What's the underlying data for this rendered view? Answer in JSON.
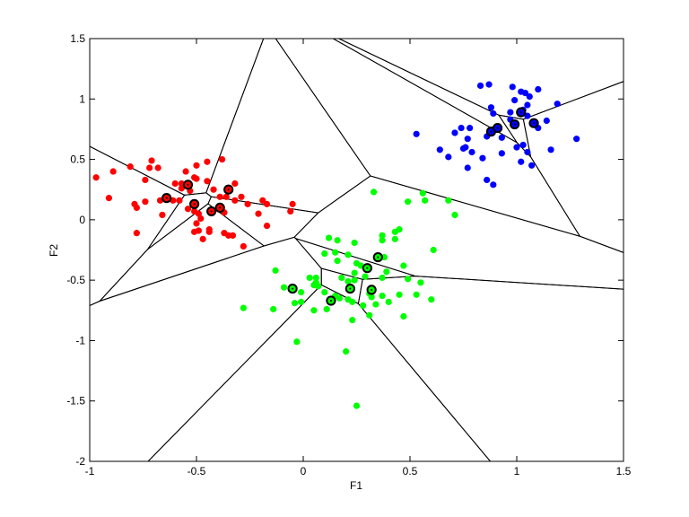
{
  "chart_data": {
    "type": "scatter",
    "title": "",
    "xlabel": "F1",
    "ylabel": "F2",
    "xlim": [
      -1,
      1.5
    ],
    "ylim": [
      -2,
      1.5
    ],
    "xticks": [
      -1,
      -0.5,
      0,
      0.5,
      1,
      1.5
    ],
    "yticks": [
      -2,
      -1.5,
      -1,
      -0.5,
      0,
      0.5,
      1,
      1.5
    ],
    "xtick_labels": [
      "-1",
      "-0.5",
      "0",
      "0.5",
      "1",
      "1.5"
    ],
    "ytick_labels": [
      "-2",
      "-1.5",
      "-1",
      "-0.5",
      "0",
      "0.5",
      "1",
      "1.5"
    ],
    "grid": false,
    "overlay": "voronoi diagram of circled centroid points",
    "series": [
      {
        "color": "#ff0000",
        "points": [
          [
            -0.97,
            0.35
          ],
          [
            -0.89,
            0.4
          ],
          [
            -0.81,
            0.44
          ],
          [
            -0.71,
            0.49
          ],
          [
            -0.72,
            0.43
          ],
          [
            -0.68,
            0.43
          ],
          [
            -0.74,
            0.33
          ],
          [
            -0.91,
            0.18
          ],
          [
            -0.79,
            0.13
          ],
          [
            -0.78,
            0.1
          ],
          [
            -0.74,
            0.15
          ],
          [
            -0.67,
            0.16
          ],
          [
            -0.66,
            0.04
          ],
          [
            -0.78,
            -0.11
          ],
          [
            -0.6,
            0.3
          ],
          [
            -0.57,
            0.3
          ],
          [
            -0.57,
            0.26
          ],
          [
            -0.55,
            0.4
          ],
          [
            -0.53,
            0.24
          ],
          [
            -0.51,
            0.35
          ],
          [
            -0.5,
            0.34
          ],
          [
            -0.5,
            0.45
          ],
          [
            -0.45,
            0.48
          ],
          [
            -0.38,
            0.5
          ],
          [
            -0.45,
            0.32
          ],
          [
            -0.42,
            0.25
          ],
          [
            -0.32,
            0.3
          ],
          [
            -0.39,
            0.19
          ],
          [
            -0.36,
            0.19
          ],
          [
            -0.32,
            0.16
          ],
          [
            -0.29,
            0.19
          ],
          [
            -0.26,
            0.13
          ],
          [
            -0.19,
            0.16
          ],
          [
            -0.17,
            0.13
          ],
          [
            -0.05,
            0.13
          ],
          [
            -0.06,
            0.07
          ],
          [
            -0.21,
            0.05
          ],
          [
            -0.17,
            -0.05
          ],
          [
            -0.28,
            -0.22
          ],
          [
            -0.37,
            0.06
          ],
          [
            -0.33,
            -0.13
          ],
          [
            -0.37,
            -0.11
          ],
          [
            -0.35,
            -0.13
          ],
          [
            -0.44,
            -0.08
          ],
          [
            -0.44,
            -0.1
          ],
          [
            -0.47,
            -0.16
          ],
          [
            -0.49,
            -0.09
          ],
          [
            -0.51,
            -0.1
          ],
          [
            -0.5,
            -0.03
          ],
          [
            -0.48,
            0.01
          ],
          [
            -0.49,
            0.05
          ],
          [
            -0.54,
            0.09
          ],
          [
            -0.51,
            0.07
          ],
          [
            -0.58,
            0.16
          ],
          [
            -0.61,
            0.16
          ]
        ],
        "centroids": [
          [
            -0.54,
            0.29
          ],
          [
            -0.64,
            0.18
          ],
          [
            -0.51,
            0.13
          ],
          [
            -0.35,
            0.25
          ],
          [
            -0.39,
            0.1
          ],
          [
            -0.43,
            0.07
          ]
        ]
      },
      {
        "color": "#0000ff",
        "points": [
          [
            0.83,
            1.11
          ],
          [
            0.87,
            1.12
          ],
          [
            0.98,
            1.1
          ],
          [
            1.02,
            1.06
          ],
          [
            1.04,
            1.05
          ],
          [
            1.06,
            1.02
          ],
          [
            1.1,
            1.08
          ],
          [
            0.99,
            0.99
          ],
          [
            1.05,
            0.95
          ],
          [
            1.19,
            0.96
          ],
          [
            0.88,
            0.93
          ],
          [
            0.89,
            0.88
          ],
          [
            0.97,
            0.89
          ],
          [
            1.03,
            0.91
          ],
          [
            1.05,
            0.86
          ],
          [
            0.97,
            0.83
          ],
          [
            1.14,
            0.82
          ],
          [
            1.1,
            0.76
          ],
          [
            0.53,
            0.71
          ],
          [
            0.74,
            0.76
          ],
          [
            0.71,
            0.72
          ],
          [
            0.78,
            0.76
          ],
          [
            0.77,
            0.67
          ],
          [
            0.86,
            0.69
          ],
          [
            0.93,
            0.68
          ],
          [
            0.64,
            0.58
          ],
          [
            0.68,
            0.52
          ],
          [
            0.75,
            0.59
          ],
          [
            0.76,
            0.6
          ],
          [
            0.79,
            0.56
          ],
          [
            0.84,
            0.51
          ],
          [
            0.93,
            0.55
          ],
          [
            1.0,
            0.6
          ],
          [
            1.03,
            0.62
          ],
          [
            1.05,
            0.56
          ],
          [
            1.02,
            0.48
          ],
          [
            1.07,
            0.45
          ],
          [
            1.16,
            0.58
          ],
          [
            1.28,
            0.67
          ],
          [
            0.77,
            0.43
          ],
          [
            0.86,
            0.33
          ],
          [
            0.89,
            0.29
          ]
        ],
        "centroids": [
          [
            0.88,
            0.73
          ],
          [
            0.91,
            0.76
          ],
          [
            1.02,
            0.89
          ],
          [
            0.99,
            0.79
          ],
          [
            1.08,
            0.8
          ]
        ]
      },
      {
        "color": "#00ff00",
        "points": [
          [
            0.33,
            0.23
          ],
          [
            0.49,
            0.15
          ],
          [
            0.57,
            0.16
          ],
          [
            0.56,
            0.22
          ],
          [
            0.68,
            0.16
          ],
          [
            0.71,
            0.04
          ],
          [
            0.45,
            -0.08
          ],
          [
            0.43,
            -0.1
          ],
          [
            0.43,
            -0.16
          ],
          [
            0.37,
            -0.13
          ],
          [
            0.37,
            -0.17
          ],
          [
            0.61,
            -0.25
          ],
          [
            0.12,
            -0.15
          ],
          [
            0.16,
            -0.17
          ],
          [
            0.24,
            -0.19
          ],
          [
            0.1,
            -0.28
          ],
          [
            0.15,
            -0.27
          ],
          [
            0.21,
            -0.29
          ],
          [
            0.16,
            -0.34
          ],
          [
            0.38,
            -0.31
          ],
          [
            0.25,
            -0.36
          ],
          [
            0.27,
            -0.38
          ],
          [
            0.24,
            -0.44
          ],
          [
            0.47,
            -0.38
          ],
          [
            0.39,
            -0.43
          ],
          [
            0.29,
            -0.47
          ],
          [
            0.37,
            -0.48
          ],
          [
            0.49,
            -0.49
          ],
          [
            0.55,
            -0.52
          ],
          [
            0.18,
            -0.48
          ],
          [
            0.21,
            -0.51
          ],
          [
            0.24,
            -0.5
          ],
          [
            0.03,
            -0.48
          ],
          [
            0.06,
            -0.48
          ],
          [
            0.06,
            -0.52
          ],
          [
            0.05,
            -0.54
          ],
          [
            0.07,
            -0.55
          ],
          [
            -0.13,
            -0.42
          ],
          [
            -0.09,
            -0.56
          ],
          [
            -0.01,
            -0.6
          ],
          [
            -0.04,
            -0.69
          ],
          [
            -0.01,
            -0.68
          ],
          [
            0.1,
            -0.6
          ],
          [
            0.15,
            -0.63
          ],
          [
            0.17,
            -0.65
          ],
          [
            0.21,
            -0.66
          ],
          [
            0.23,
            -0.68
          ],
          [
            0.32,
            -0.64
          ],
          [
            0.31,
            -0.61
          ],
          [
            0.37,
            -0.63
          ],
          [
            0.45,
            -0.62
          ],
          [
            0.53,
            -0.62
          ],
          [
            0.6,
            -0.66
          ],
          [
            0.4,
            -0.68
          ],
          [
            0.34,
            -0.7
          ],
          [
            0.28,
            -0.71
          ],
          [
            0.31,
            -0.79
          ],
          [
            0.47,
            -0.8
          ],
          [
            0.23,
            -0.83
          ],
          [
            0.11,
            -0.74
          ],
          [
            0.05,
            -0.75
          ],
          [
            -0.14,
            -0.74
          ],
          [
            -0.28,
            -0.73
          ],
          [
            -0.03,
            -1.01
          ],
          [
            0.2,
            -1.09
          ],
          [
            0.25,
            -1.54
          ]
        ],
        "centroids": [
          [
            0.35,
            -0.31
          ],
          [
            0.3,
            -0.4
          ],
          [
            -0.05,
            -0.57
          ],
          [
            0.22,
            -0.57
          ],
          [
            0.32,
            -0.58
          ],
          [
            0.13,
            -0.67
          ]
        ]
      }
    ]
  }
}
